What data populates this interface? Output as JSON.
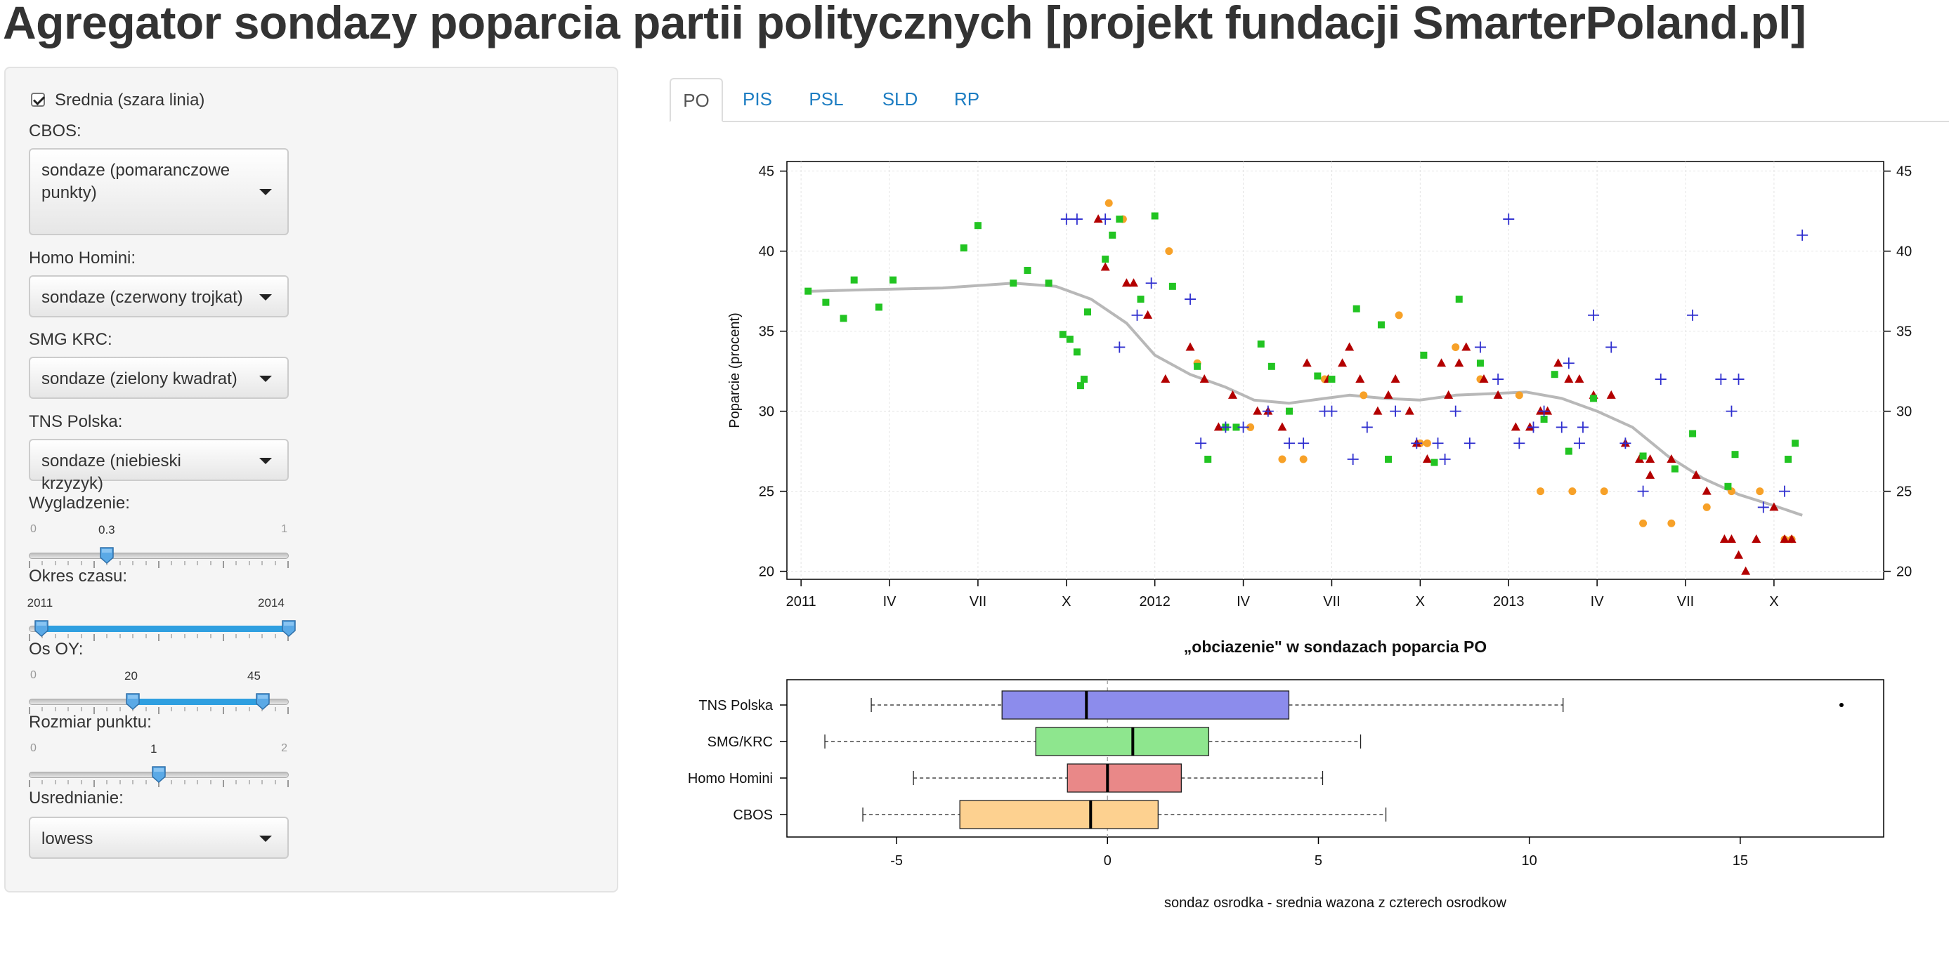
{
  "page": {
    "title": "Agregator sondazy poparcia partii politycznych [projekt fundacji SmarterPoland.pl]"
  },
  "sidebar": {
    "average_checkbox": {
      "label": "Srednia (szara linia)",
      "checked": true
    },
    "cbos": {
      "label": "CBOS:",
      "value": "sondaze (pomaranczowe punkty)"
    },
    "homo_homini": {
      "label": "Homo Homini:",
      "value": "sondaze (czerwony trojkat)"
    },
    "smg_krc": {
      "label": "SMG KRC:",
      "value": "sondaze (zielony kwadrat)"
    },
    "tns": {
      "label": "TNS Polska:",
      "value": "sondaze (niebieski krzyzyk)"
    },
    "smoothing": {
      "label": "Wygladzenie:",
      "min": "0",
      "max": "1",
      "value": "0.3",
      "value_num": 0.3
    },
    "period": {
      "label": "Okres czasu:",
      "from": "2011",
      "to": "2014",
      "from_num": 2011,
      "to_num": 2014,
      "min_num": 2011,
      "max_num": 2014
    },
    "y_axis": {
      "label": "Os OY:",
      "min": "0",
      "max_label": "45",
      "from": "20",
      "to": "45",
      "min_num": 0,
      "max_num": 50,
      "from_num": 20,
      "to_num": 45
    },
    "point_size": {
      "label": "Rozmiar punktu:",
      "min": "0",
      "max": "2",
      "value": "1",
      "value_num": 1
    },
    "averaging": {
      "label": "Usrednianie:",
      "value": "lowess"
    }
  },
  "tabs": [
    {
      "label": "PO",
      "active": true
    },
    {
      "label": "PIS",
      "active": false
    },
    {
      "label": "PSL",
      "active": false
    },
    {
      "label": "SLD",
      "active": false
    },
    {
      "label": "RP",
      "active": false
    }
  ],
  "colors": {
    "cbos": "#f7a128",
    "homo_homini": "#b30000",
    "smg_krc": "#22c422",
    "tns": "#2f2fcf",
    "average": "#b8b8b8",
    "box_tns": "#8c8cec",
    "box_smg": "#8ee68e",
    "box_homo": "#e98888",
    "box_cbos": "#fdd190"
  },
  "chart_data": [
    {
      "type": "scatter",
      "title": "",
      "ylabel": "Poparcie (procent)",
      "xlabel": "",
      "ylim": [
        20,
        45
      ],
      "xlim": [
        2010.96,
        2014.06
      ],
      "yticks": [
        20,
        25,
        30,
        35,
        40,
        45
      ],
      "xticks": [
        {
          "label": "2011",
          "value": 2011.0
        },
        {
          "label": "IV",
          "value": 2011.25
        },
        {
          "label": "VII",
          "value": 2011.5
        },
        {
          "label": "X",
          "value": 2011.75
        },
        {
          "label": "2012",
          "value": 2012.0
        },
        {
          "label": "IV",
          "value": 2012.25
        },
        {
          "label": "VII",
          "value": 2012.5
        },
        {
          "label": "X",
          "value": 2012.75
        },
        {
          "label": "2013",
          "value": 2013.0
        },
        {
          "label": "IV",
          "value": 2013.25
        },
        {
          "label": "VII",
          "value": 2013.5
        },
        {
          "label": "X",
          "value": 2013.75
        }
      ],
      "grid": true,
      "series": [
        {
          "name": "CBOS",
          "marker": "circle",
          "points": [
            [
              2011.87,
              43
            ],
            [
              2011.91,
              42
            ],
            [
              2012.04,
              40
            ],
            [
              2012.12,
              33
            ],
            [
              2012.27,
              29
            ],
            [
              2012.36,
              27
            ],
            [
              2012.42,
              27
            ],
            [
              2012.48,
              32
            ],
            [
              2012.59,
              31
            ],
            [
              2012.69,
              36
            ],
            [
              2012.75,
              28
            ],
            [
              2012.77,
              28
            ],
            [
              2012.85,
              34
            ],
            [
              2012.92,
              32
            ],
            [
              2013.03,
              31
            ],
            [
              2013.09,
              25
            ],
            [
              2013.18,
              25
            ],
            [
              2013.27,
              25
            ],
            [
              2013.38,
              23
            ],
            [
              2013.46,
              23
            ],
            [
              2013.56,
              24
            ],
            [
              2013.63,
              25
            ],
            [
              2013.71,
              25
            ],
            [
              2013.78,
              22
            ],
            [
              2013.8,
              22
            ]
          ]
        },
        {
          "name": "Homo Homini",
          "marker": "triangle",
          "points": [
            [
              2011.84,
              42
            ],
            [
              2011.86,
              39
            ],
            [
              2011.92,
              38
            ],
            [
              2011.94,
              38
            ],
            [
              2011.98,
              36
            ],
            [
              2012.03,
              32
            ],
            [
              2012.1,
              34
            ],
            [
              2012.14,
              32
            ],
            [
              2012.22,
              31
            ],
            [
              2012.29,
              30
            ],
            [
              2012.32,
              30
            ],
            [
              2012.36,
              29
            ],
            [
              2012.43,
              33
            ],
            [
              2012.49,
              32
            ],
            [
              2012.53,
              33
            ],
            [
              2012.55,
              34
            ],
            [
              2012.58,
              32
            ],
            [
              2012.63,
              30
            ],
            [
              2012.66,
              31
            ],
            [
              2012.68,
              32
            ],
            [
              2012.72,
              30
            ],
            [
              2012.74,
              28
            ],
            [
              2012.77,
              27
            ],
            [
              2012.81,
              33
            ],
            [
              2012.83,
              31
            ],
            [
              2012.86,
              33
            ],
            [
              2012.88,
              34
            ],
            [
              2012.93,
              32
            ],
            [
              2012.97,
              31
            ],
            [
              2013.02,
              29
            ],
            [
              2013.06,
              29
            ],
            [
              2013.09,
              30
            ],
            [
              2013.11,
              30
            ],
            [
              2013.14,
              33
            ],
            [
              2013.17,
              32
            ],
            [
              2013.2,
              32
            ],
            [
              2013.24,
              31
            ],
            [
              2013.29,
              31
            ],
            [
              2013.33,
              28
            ],
            [
              2013.37,
              27
            ],
            [
              2013.4,
              26
            ],
            [
              2013.46,
              27
            ],
            [
              2013.53,
              26
            ],
            [
              2013.56,
              25
            ],
            [
              2013.61,
              22
            ],
            [
              2013.63,
              22
            ],
            [
              2013.65,
              21
            ],
            [
              2013.67,
              20
            ],
            [
              2013.7,
              22
            ],
            [
              2013.75,
              24
            ],
            [
              2013.78,
              22
            ],
            [
              2013.8,
              22
            ],
            [
              2013.4,
              27
            ],
            [
              2012.18,
              29
            ]
          ]
        },
        {
          "name": "SMG/KRC",
          "marker": "square",
          "points": [
            [
              2011.02,
              37.5
            ],
            [
              2011.07,
              36.8
            ],
            [
              2011.12,
              35.8
            ],
            [
              2011.15,
              38.2
            ],
            [
              2011.22,
              36.5
            ],
            [
              2011.26,
              38.2
            ],
            [
              2011.46,
              40.2
            ],
            [
              2011.5,
              41.6
            ],
            [
              2011.6,
              38
            ],
            [
              2011.64,
              38.8
            ],
            [
              2011.7,
              38
            ],
            [
              2011.74,
              34.8
            ],
            [
              2011.76,
              34.5
            ],
            [
              2011.78,
              33.7
            ],
            [
              2011.79,
              31.6
            ],
            [
              2011.8,
              32
            ],
            [
              2011.81,
              36.2
            ],
            [
              2011.86,
              39.5
            ],
            [
              2011.88,
              41
            ],
            [
              2011.9,
              42
            ],
            [
              2011.96,
              37
            ],
            [
              2012.0,
              42.2
            ],
            [
              2012.05,
              37.8
            ],
            [
              2012.12,
              32.8
            ],
            [
              2012.15,
              27
            ],
            [
              2012.2,
              29
            ],
            [
              2012.23,
              29
            ],
            [
              2012.3,
              34.2
            ],
            [
              2012.33,
              32.8
            ],
            [
              2012.38,
              30
            ],
            [
              2012.46,
              32.2
            ],
            [
              2012.5,
              32
            ],
            [
              2012.57,
              36.4
            ],
            [
              2012.64,
              35.4
            ],
            [
              2012.66,
              27
            ],
            [
              2012.76,
              33.5
            ],
            [
              2012.79,
              26.8
            ],
            [
              2012.86,
              37
            ],
            [
              2012.92,
              33
            ],
            [
              2013.1,
              29.5
            ],
            [
              2013.13,
              32.3
            ],
            [
              2013.17,
              27.5
            ],
            [
              2013.24,
              30.8
            ],
            [
              2013.38,
              27.2
            ],
            [
              2013.47,
              26.4
            ],
            [
              2013.52,
              28.6
            ],
            [
              2013.62,
              25.3
            ],
            [
              2013.64,
              27.3
            ],
            [
              2013.79,
              27
            ],
            [
              2013.81,
              28
            ]
          ]
        },
        {
          "name": "TNS Polska",
          "marker": "cross",
          "points": [
            [
              2011.75,
              42
            ],
            [
              2011.78,
              42
            ],
            [
              2011.86,
              42
            ],
            [
              2011.9,
              34
            ],
            [
              2011.95,
              36
            ],
            [
              2011.99,
              38
            ],
            [
              2012.1,
              37
            ],
            [
              2012.13,
              28
            ],
            [
              2012.2,
              29
            ],
            [
              2012.25,
              29
            ],
            [
              2012.32,
              30
            ],
            [
              2012.38,
              28
            ],
            [
              2012.42,
              28
            ],
            [
              2012.48,
              30
            ],
            [
              2012.5,
              30
            ],
            [
              2012.56,
              27
            ],
            [
              2012.6,
              29
            ],
            [
              2012.68,
              30
            ],
            [
              2012.74,
              28
            ],
            [
              2012.8,
              28
            ],
            [
              2012.82,
              27
            ],
            [
              2012.85,
              30
            ],
            [
              2012.89,
              28
            ],
            [
              2012.92,
              34
            ],
            [
              2012.97,
              32
            ],
            [
              2013.07,
              29
            ],
            [
              2013.1,
              30
            ],
            [
              2013.15,
              29
            ],
            [
              2013.17,
              33
            ],
            [
              2013.21,
              29
            ],
            [
              2013.24,
              36
            ],
            [
              2013.29,
              34
            ],
            [
              2013.33,
              28
            ],
            [
              2013.38,
              25
            ],
            [
              2013.43,
              32
            ],
            [
              2013.52,
              36
            ],
            [
              2013.63,
              30
            ],
            [
              2013.65,
              32
            ],
            [
              2013.72,
              24
            ],
            [
              2013.78,
              25
            ],
            [
              2013.83,
              41
            ],
            [
              2013.0,
              42
            ],
            [
              2013.2,
              28
            ],
            [
              2013.6,
              32
            ],
            [
              2013.03,
              28
            ]
          ]
        }
      ],
      "average_line": {
        "name": "Srednia",
        "points": [
          [
            2011.03,
            37.5
          ],
          [
            2011.2,
            37.6
          ],
          [
            2011.4,
            37.7
          ],
          [
            2011.6,
            38.0
          ],
          [
            2011.72,
            37.8
          ],
          [
            2011.82,
            37.0
          ],
          [
            2011.92,
            35.5
          ],
          [
            2012.0,
            33.5
          ],
          [
            2012.1,
            32.3
          ],
          [
            2012.2,
            31.5
          ],
          [
            2012.28,
            30.7
          ],
          [
            2012.38,
            30.5
          ],
          [
            2012.48,
            30.8
          ],
          [
            2012.55,
            31.0
          ],
          [
            2012.65,
            30.8
          ],
          [
            2012.75,
            30.7
          ],
          [
            2012.85,
            31.0
          ],
          [
            2012.95,
            31.1
          ],
          [
            2013.05,
            31.2
          ],
          [
            2013.15,
            30.8
          ],
          [
            2013.25,
            30.0
          ],
          [
            2013.35,
            29.0
          ],
          [
            2013.45,
            27.2
          ],
          [
            2013.55,
            25.8
          ],
          [
            2013.65,
            24.8
          ],
          [
            2013.75,
            24.1
          ],
          [
            2013.83,
            23.5
          ]
        ]
      }
    },
    {
      "type": "boxplot",
      "title": "„obciazenie\" w sondazach poparcia  PO",
      "xlabel": "sondaz osrodka - srednia wazona z czterech osrodkow",
      "ylabel": "",
      "xlim": [
        -7.6,
        18.4
      ],
      "xticks": [
        -5,
        0,
        5,
        10,
        15
      ],
      "xtick_labels": [
        "-5",
        "0",
        "5",
        "10",
        "15"
      ],
      "reference_line": 0,
      "boxes": [
        {
          "name": "TNS Polska",
          "whisker_low": -5.6,
          "q1": -2.5,
          "median": -0.5,
          "q3": 4.3,
          "whisker_high": 10.8,
          "outliers": [
            17.4
          ]
        },
        {
          "name": "SMG/KRC",
          "whisker_low": -6.7,
          "q1": -1.7,
          "median": 0.6,
          "q3": 2.4,
          "whisker_high": 6.0,
          "outliers": []
        },
        {
          "name": "Homo Homini",
          "whisker_low": -4.6,
          "q1": -0.95,
          "median": 0.0,
          "q3": 1.75,
          "whisker_high": 5.1,
          "outliers": []
        },
        {
          "name": "CBOS",
          "whisker_low": -5.8,
          "q1": -3.5,
          "median": -0.4,
          "q3": 1.2,
          "whisker_high": 6.6,
          "outliers": []
        }
      ]
    }
  ]
}
